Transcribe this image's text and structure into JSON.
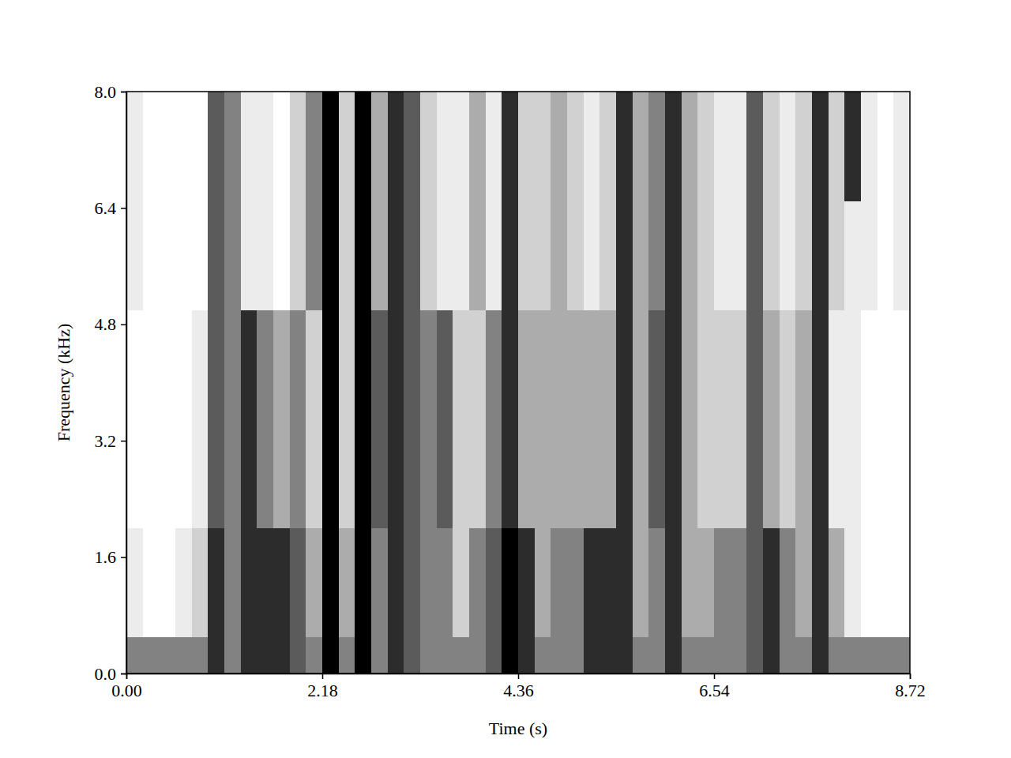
{
  "chart_data": {
    "type": "heatmap",
    "xlabel": "Time (s)",
    "ylabel": "Frequency (kHz)",
    "xlim": [
      0,
      8.72
    ],
    "ylim": [
      0,
      8
    ],
    "xticks": [
      {
        "value": 0,
        "label": "0.00"
      },
      2.18,
      4.36,
      6.54,
      8.72
    ],
    "yticks": [
      {
        "value": 0,
        "label": "0.0"
      },
      1.6,
      3.2,
      4.8,
      6.4,
      {
        "value": 8,
        "label": "8.0"
      }
    ],
    "cells": [
      [
        6,
        6,
        6,
        6,
        6,
        8,
        6,
        8,
        8,
        8,
        7,
        6,
        9,
        6,
        9,
        6,
        8,
        7,
        6,
        6,
        6,
        6,
        7,
        9,
        8,
        6,
        6,
        6,
        8,
        8,
        8,
        6,
        6,
        8,
        6,
        6,
        6,
        6,
        7,
        8,
        6,
        6,
        8,
        6,
        6,
        6,
        6,
        6
      ],
      [
        3,
        2,
        2,
        3,
        4,
        8,
        6,
        8,
        8,
        8,
        7,
        5,
        9,
        5,
        9,
        6,
        8,
        7,
        6,
        6,
        4,
        6,
        7,
        9,
        8,
        5,
        6,
        6,
        8,
        8,
        8,
        5,
        6,
        8,
        5,
        5,
        6,
        6,
        7,
        8,
        6,
        5,
        8,
        5,
        3,
        2,
        2,
        2
      ],
      [
        3,
        2,
        2,
        3,
        4,
        8,
        6,
        8,
        8,
        8,
        7,
        5,
        9,
        5,
        9,
        6,
        8,
        7,
        6,
        6,
        4,
        6,
        7,
        9,
        8,
        5,
        6,
        6,
        8,
        8,
        8,
        5,
        6,
        8,
        5,
        5,
        6,
        6,
        7,
        8,
        6,
        5,
        8,
        5,
        3,
        2,
        2,
        2
      ],
      [
        3,
        2,
        2,
        3,
        4,
        8,
        6,
        8,
        8,
        8,
        7,
        5,
        9,
        5,
        9,
        6,
        8,
        7,
        6,
        6,
        4,
        6,
        7,
        9,
        8,
        5,
        6,
        6,
        8,
        8,
        8,
        5,
        6,
        8,
        5,
        5,
        6,
        6,
        7,
        8,
        6,
        5,
        8,
        5,
        3,
        2,
        2,
        2
      ],
      [
        2,
        2,
        2,
        2,
        3,
        7,
        6,
        8,
        6,
        5,
        6,
        4,
        9,
        4,
        9,
        7,
        8,
        7,
        6,
        7,
        4,
        4,
        6,
        8,
        5,
        5,
        5,
        5,
        5,
        5,
        8,
        5,
        7,
        8,
        5,
        4,
        4,
        4,
        7,
        5,
        4,
        5,
        8,
        3,
        3,
        2,
        2,
        2
      ],
      [
        2,
        2,
        2,
        2,
        3,
        7,
        6,
        8,
        6,
        5,
        6,
        4,
        9,
        4,
        9,
        7,
        8,
        7,
        6,
        7,
        4,
        4,
        6,
        8,
        5,
        5,
        5,
        5,
        5,
        5,
        8,
        5,
        7,
        8,
        5,
        4,
        4,
        4,
        7,
        5,
        4,
        5,
        8,
        3,
        3,
        2,
        2,
        2
      ],
      [
        2,
        2,
        2,
        2,
        3,
        7,
        6,
        8,
        6,
        5,
        6,
        4,
        9,
        4,
        9,
        7,
        8,
        7,
        6,
        7,
        4,
        4,
        6,
        8,
        5,
        5,
        5,
        5,
        5,
        5,
        8,
        5,
        7,
        8,
        5,
        4,
        4,
        4,
        7,
        5,
        4,
        5,
        8,
        3,
        3,
        2,
        2,
        2
      ],
      [
        2,
        2,
        2,
        2,
        3,
        7,
        6,
        8,
        6,
        5,
        6,
        4,
        9,
        4,
        9,
        7,
        8,
        7,
        6,
        7,
        4,
        4,
        6,
        8,
        5,
        5,
        5,
        5,
        5,
        5,
        8,
        5,
        7,
        8,
        5,
        4,
        4,
        4,
        7,
        5,
        4,
        5,
        8,
        3,
        3,
        2,
        2,
        2
      ],
      [
        2,
        2,
        2,
        2,
        3,
        7,
        6,
        8,
        6,
        5,
        6,
        4,
        9,
        4,
        9,
        7,
        8,
        7,
        6,
        7,
        4,
        4,
        6,
        8,
        5,
        5,
        5,
        5,
        5,
        5,
        8,
        5,
        7,
        8,
        5,
        4,
        4,
        4,
        7,
        5,
        4,
        5,
        8,
        3,
        3,
        2,
        2,
        2
      ],
      [
        2,
        2,
        2,
        2,
        3,
        7,
        6,
        8,
        6,
        5,
        6,
        4,
        9,
        4,
        9,
        7,
        8,
        7,
        6,
        7,
        4,
        4,
        6,
        8,
        5,
        5,
        5,
        5,
        5,
        5,
        8,
        5,
        7,
        8,
        5,
        4,
        4,
        4,
        7,
        5,
        4,
        5,
        8,
        3,
        3,
        2,
        2,
        2
      ],
      [
        3,
        2,
        2,
        2,
        2,
        7,
        6,
        3,
        3,
        2,
        4,
        6,
        9,
        4,
        9,
        5,
        8,
        7,
        4,
        3,
        3,
        5,
        3,
        8,
        4,
        4,
        5,
        4,
        3,
        4,
        8,
        5,
        6,
        8,
        5,
        4,
        3,
        3,
        7,
        4,
        3,
        4,
        8,
        4,
        3,
        3,
        2,
        3
      ],
      [
        3,
        2,
        2,
        2,
        2,
        7,
        6,
        3,
        3,
        2,
        4,
        6,
        9,
        4,
        9,
        5,
        8,
        7,
        4,
        3,
        3,
        5,
        3,
        8,
        4,
        4,
        5,
        4,
        3,
        4,
        8,
        5,
        6,
        8,
        5,
        4,
        3,
        3,
        7,
        4,
        3,
        4,
        8,
        4,
        3,
        3,
        2,
        3
      ],
      [
        3,
        2,
        2,
        2,
        2,
        7,
        6,
        3,
        3,
        2,
        4,
        6,
        9,
        4,
        9,
        5,
        8,
        7,
        4,
        3,
        3,
        5,
        3,
        8,
        4,
        4,
        5,
        4,
        3,
        4,
        8,
        5,
        6,
        8,
        5,
        4,
        3,
        3,
        7,
        4,
        3,
        4,
        8,
        4,
        3,
        3,
        2,
        3
      ],
      [
        3,
        2,
        2,
        2,
        2,
        7,
        6,
        3,
        3,
        2,
        4,
        6,
        9,
        4,
        9,
        5,
        8,
        7,
        4,
        3,
        3,
        5,
        3,
        8,
        4,
        4,
        5,
        4,
        3,
        4,
        8,
        5,
        6,
        8,
        5,
        4,
        3,
        3,
        7,
        4,
        3,
        4,
        8,
        4,
        8,
        3,
        2,
        3
      ],
      [
        3,
        2,
        2,
        2,
        2,
        7,
        6,
        3,
        3,
        2,
        4,
        6,
        9,
        4,
        9,
        5,
        8,
        7,
        4,
        3,
        3,
        5,
        3,
        8,
        4,
        4,
        5,
        4,
        3,
        4,
        8,
        5,
        6,
        8,
        5,
        4,
        3,
        3,
        7,
        4,
        3,
        4,
        8,
        4,
        8,
        3,
        2,
        3
      ],
      [
        3,
        2,
        2,
        2,
        2,
        7,
        6,
        3,
        3,
        2,
        4,
        6,
        9,
        4,
        9,
        5,
        8,
        7,
        4,
        3,
        3,
        5,
        3,
        8,
        4,
        4,
        5,
        4,
        3,
        4,
        8,
        5,
        6,
        8,
        5,
        4,
        3,
        3,
        7,
        4,
        3,
        4,
        8,
        4,
        8,
        3,
        2,
        3
      ]
    ]
  }
}
